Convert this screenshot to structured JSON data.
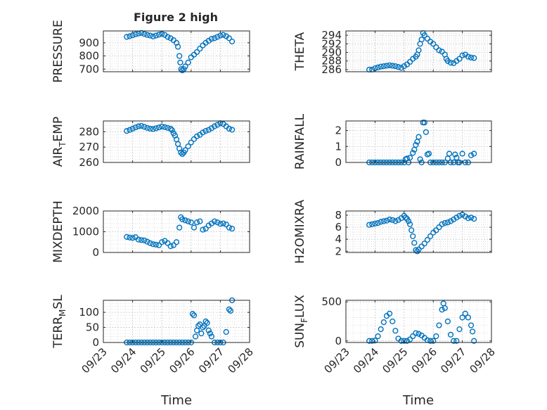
{
  "figure": {
    "title": "Figure 2 high",
    "marker_color": "#0072BD"
  },
  "x_axis": {
    "label": "Time",
    "tick_labels": [
      "09/23",
      "09/24",
      "09/25",
      "09/26",
      "09/27",
      "09/28"
    ],
    "tick_days": [
      0,
      1,
      2,
      3,
      4,
      5
    ],
    "data_start": "09/23",
    "xlim_days": [
      0,
      5
    ]
  },
  "chart_data": [
    {
      "type": "scatter",
      "name": "pressure",
      "ylabel": "PRESSURE",
      "ylim": [
        680,
        990
      ],
      "yticks": [
        700,
        800,
        900
      ],
      "ytick_labels": [
        "700",
        "800",
        "900"
      ],
      "grid": true,
      "title": "Figure 2 high",
      "points": [
        [
          0.8,
          945
        ],
        [
          0.9,
          950
        ],
        [
          1.0,
          957
        ],
        [
          1.1,
          965
        ],
        [
          1.2,
          970
        ],
        [
          1.3,
          975
        ],
        [
          1.4,
          967
        ],
        [
          1.5,
          960
        ],
        [
          1.6,
          955
        ],
        [
          1.7,
          948
        ],
        [
          1.8,
          955
        ],
        [
          1.9,
          962
        ],
        [
          2.0,
          968
        ],
        [
          2.1,
          960
        ],
        [
          2.2,
          945
        ],
        [
          2.3,
          935
        ],
        [
          2.4,
          920
        ],
        [
          2.5,
          900
        ],
        [
          2.55,
          870
        ],
        [
          2.6,
          800
        ],
        [
          2.63,
          750
        ],
        [
          2.66,
          700
        ],
        [
          2.7,
          690
        ],
        [
          2.75,
          700
        ],
        [
          2.8,
          720
        ],
        [
          2.9,
          750
        ],
        [
          3.0,
          790
        ],
        [
          3.1,
          810
        ],
        [
          3.2,
          830
        ],
        [
          3.3,
          855
        ],
        [
          3.4,
          880
        ],
        [
          3.5,
          900
        ],
        [
          3.6,
          915
        ],
        [
          3.7,
          930
        ],
        [
          3.8,
          935
        ],
        [
          3.9,
          945
        ],
        [
          4.0,
          955
        ],
        [
          4.1,
          960
        ],
        [
          4.2,
          950
        ],
        [
          4.3,
          935
        ],
        [
          4.4,
          910
        ]
      ]
    },
    {
      "type": "scatter",
      "name": "theta",
      "ylabel": "THETA",
      "ylim": [
        285.5,
        295
      ],
      "yticks": [
        286,
        288,
        290,
        292,
        294
      ],
      "ytick_labels": [
        "286",
        "288",
        "290",
        "292",
        "294"
      ],
      "grid": true,
      "points": [
        [
          0.8,
          286
        ],
        [
          0.9,
          286
        ],
        [
          1.0,
          286.3
        ],
        [
          1.1,
          286.5
        ],
        [
          1.2,
          286.7
        ],
        [
          1.3,
          286.8
        ],
        [
          1.4,
          286.9
        ],
        [
          1.5,
          287
        ],
        [
          1.6,
          286.9
        ],
        [
          1.7,
          286.8
        ],
        [
          1.8,
          286.6
        ],
        [
          1.9,
          286.4
        ],
        [
          2.0,
          286.8
        ],
        [
          2.1,
          287.2
        ],
        [
          2.2,
          287.8
        ],
        [
          2.3,
          288.5
        ],
        [
          2.4,
          289
        ],
        [
          2.45,
          289.5
        ],
        [
          2.5,
          290.5
        ],
        [
          2.55,
          292
        ],
        [
          2.6,
          293
        ],
        [
          2.65,
          294.5
        ],
        [
          2.7,
          294
        ],
        [
          2.8,
          293.2
        ],
        [
          2.9,
          292.5
        ],
        [
          3.0,
          292
        ],
        [
          3.1,
          291.2
        ],
        [
          3.2,
          290.5
        ],
        [
          3.3,
          290.2
        ],
        [
          3.4,
          289.5
        ],
        [
          3.45,
          288.5
        ],
        [
          3.5,
          288
        ],
        [
          3.6,
          287.6
        ],
        [
          3.7,
          287.5
        ],
        [
          3.8,
          288
        ],
        [
          3.9,
          288.5
        ],
        [
          4.0,
          289.3
        ],
        [
          4.1,
          289.5
        ],
        [
          4.2,
          289
        ],
        [
          4.3,
          288.8
        ],
        [
          4.4,
          288.7
        ]
      ]
    },
    {
      "type": "scatter",
      "name": "air_temp",
      "ylabel": "AIR_TEMP",
      "ylim": [
        260,
        287
      ],
      "yticks": [
        260,
        270,
        280
      ],
      "ytick_labels": [
        "260",
        "270",
        "280"
      ],
      "grid": true,
      "points": [
        [
          0.8,
          280.5
        ],
        [
          0.9,
          281.2
        ],
        [
          1.0,
          282
        ],
        [
          1.1,
          282.8
        ],
        [
          1.2,
          283.5
        ],
        [
          1.3,
          283.8
        ],
        [
          1.4,
          283.2
        ],
        [
          1.5,
          282.5
        ],
        [
          1.6,
          282
        ],
        [
          1.7,
          281.8
        ],
        [
          1.8,
          282.2
        ],
        [
          1.9,
          282.8
        ],
        [
          2.0,
          283.4
        ],
        [
          2.1,
          283
        ],
        [
          2.2,
          282.5
        ],
        [
          2.3,
          282
        ],
        [
          2.35,
          281
        ],
        [
          2.4,
          279
        ],
        [
          2.45,
          277.5
        ],
        [
          2.5,
          275
        ],
        [
          2.55,
          272
        ],
        [
          2.6,
          269
        ],
        [
          2.65,
          266.5
        ],
        [
          2.7,
          265.5
        ],
        [
          2.75,
          266.5
        ],
        [
          2.8,
          268
        ],
        [
          2.9,
          270.5
        ],
        [
          3.0,
          273
        ],
        [
          3.1,
          275.2
        ],
        [
          3.2,
          277
        ],
        [
          3.3,
          278
        ],
        [
          3.4,
          279.5
        ],
        [
          3.5,
          280.5
        ],
        [
          3.6,
          281.2
        ],
        [
          3.7,
          282.3
        ],
        [
          3.8,
          283.5
        ],
        [
          3.9,
          284.5
        ],
        [
          4.0,
          285.5
        ],
        [
          4.1,
          285
        ],
        [
          4.2,
          283.5
        ],
        [
          4.3,
          282
        ],
        [
          4.4,
          281.3
        ]
      ]
    },
    {
      "type": "scatter",
      "name": "rainfall",
      "ylabel": "RAINFALL",
      "ylim": [
        0,
        2.6
      ],
      "yticks": [
        0,
        1,
        2
      ],
      "ytick_labels": [
        "0",
        "1",
        "2"
      ],
      "grid": true,
      "points": [
        [
          0.8,
          0
        ],
        [
          0.9,
          0
        ],
        [
          1.0,
          0
        ],
        [
          1.1,
          0
        ],
        [
          1.2,
          0
        ],
        [
          1.3,
          0
        ],
        [
          1.4,
          0
        ],
        [
          1.5,
          0
        ],
        [
          1.6,
          0
        ],
        [
          1.7,
          0
        ],
        [
          1.8,
          0
        ],
        [
          1.9,
          0
        ],
        [
          2.0,
          0
        ],
        [
          2.05,
          0.2
        ],
        [
          2.1,
          0.25
        ],
        [
          2.15,
          0
        ],
        [
          2.2,
          0.3
        ],
        [
          2.3,
          0.6
        ],
        [
          2.35,
          0.8
        ],
        [
          2.4,
          1.1
        ],
        [
          2.45,
          1.3
        ],
        [
          2.5,
          1.6
        ],
        [
          2.55,
          0.2
        ],
        [
          2.6,
          0
        ],
        [
          2.65,
          2.5
        ],
        [
          2.7,
          2.5
        ],
        [
          2.75,
          1.9
        ],
        [
          2.8,
          0.5
        ],
        [
          2.85,
          0.55
        ],
        [
          2.9,
          0
        ],
        [
          3.0,
          0
        ],
        [
          3.1,
          0
        ],
        [
          3.2,
          0
        ],
        [
          3.3,
          0
        ],
        [
          3.4,
          0
        ],
        [
          3.5,
          0.25
        ],
        [
          3.55,
          0.55
        ],
        [
          3.6,
          0
        ],
        [
          3.7,
          0
        ],
        [
          3.75,
          0.5
        ],
        [
          3.8,
          0.3
        ],
        [
          3.85,
          0
        ],
        [
          3.9,
          0
        ],
        [
          4.0,
          0.55
        ],
        [
          4.1,
          0
        ],
        [
          4.2,
          0
        ],
        [
          4.3,
          0.45
        ],
        [
          4.4,
          0.55
        ]
      ]
    },
    {
      "type": "scatter",
      "name": "mixdepth",
      "ylabel": "MIXDEPTH",
      "ylim": [
        0,
        2000
      ],
      "yticks": [
        0,
        1000,
        2000
      ],
      "ytick_labels": [
        "0",
        "1000",
        "2000"
      ],
      "grid": true,
      "points": [
        [
          0.8,
          750
        ],
        [
          0.9,
          720
        ],
        [
          1.0,
          700
        ],
        [
          1.1,
          740
        ],
        [
          1.2,
          620
        ],
        [
          1.3,
          600
        ],
        [
          1.4,
          580
        ],
        [
          1.5,
          520
        ],
        [
          1.6,
          450
        ],
        [
          1.7,
          400
        ],
        [
          1.8,
          380
        ],
        [
          1.9,
          350
        ],
        [
          2.0,
          500
        ],
        [
          2.1,
          560
        ],
        [
          2.2,
          450
        ],
        [
          2.3,
          300
        ],
        [
          2.4,
          350
        ],
        [
          2.5,
          500
        ],
        [
          2.6,
          1200
        ],
        [
          2.65,
          1700
        ],
        [
          2.7,
          1600
        ],
        [
          2.8,
          1550
        ],
        [
          2.9,
          1500
        ],
        [
          3.0,
          1450
        ],
        [
          3.1,
          1200
        ],
        [
          3.2,
          1450
        ],
        [
          3.3,
          1500
        ],
        [
          3.4,
          1100
        ],
        [
          3.5,
          1150
        ],
        [
          3.6,
          1300
        ],
        [
          3.7,
          1400
        ],
        [
          3.8,
          1500
        ],
        [
          3.9,
          1450
        ],
        [
          4.0,
          1380
        ],
        [
          4.1,
          1400
        ],
        [
          4.2,
          1350
        ],
        [
          4.3,
          1200
        ],
        [
          4.4,
          1150
        ]
      ]
    },
    {
      "type": "scatter",
      "name": "h2omixra",
      "ylabel": "H2OMIXRA",
      "ylim": [
        1.8,
        8.7
      ],
      "yticks": [
        2,
        4,
        6,
        8
      ],
      "ytick_labels": [
        "2",
        "4",
        "6",
        "8"
      ],
      "grid": true,
      "points": [
        [
          0.8,
          6.4
        ],
        [
          0.9,
          6.5
        ],
        [
          1.0,
          6.6
        ],
        [
          1.1,
          6.7
        ],
        [
          1.2,
          6.9
        ],
        [
          1.3,
          7
        ],
        [
          1.4,
          7.1
        ],
        [
          1.5,
          7.3
        ],
        [
          1.6,
          7.2
        ],
        [
          1.7,
          7
        ],
        [
          1.8,
          7.2
        ],
        [
          1.9,
          7.5
        ],
        [
          2.0,
          7.9
        ],
        [
          2.05,
          7.6
        ],
        [
          2.1,
          7.4
        ],
        [
          2.15,
          7
        ],
        [
          2.2,
          6.5
        ],
        [
          2.25,
          5.5
        ],
        [
          2.3,
          4.5
        ],
        [
          2.35,
          3.4
        ],
        [
          2.4,
          2.2
        ],
        [
          2.45,
          2
        ],
        [
          2.5,
          2.3
        ],
        [
          2.6,
          2.8
        ],
        [
          2.7,
          3.3
        ],
        [
          2.8,
          3.9
        ],
        [
          2.9,
          4.5
        ],
        [
          3.0,
          5.1
        ],
        [
          3.1,
          5.5
        ],
        [
          3.2,
          6
        ],
        [
          3.3,
          6.5
        ],
        [
          3.4,
          6.7
        ],
        [
          3.5,
          6.8
        ],
        [
          3.6,
          7
        ],
        [
          3.7,
          7.3
        ],
        [
          3.8,
          7.6
        ],
        [
          3.9,
          7.9
        ],
        [
          4.0,
          8.1
        ],
        [
          4.1,
          7.8
        ],
        [
          4.2,
          7.5
        ],
        [
          4.3,
          7.6
        ],
        [
          4.4,
          7.4
        ]
      ]
    },
    {
      "type": "scatter",
      "name": "terr_msl",
      "ylabel": "TERR_MSL",
      "ylim": [
        0,
        140
      ],
      "yticks": [
        0,
        50,
        100
      ],
      "ytick_labels": [
        "0",
        "50",
        "100"
      ],
      "grid": true,
      "points": [
        [
          0.8,
          0
        ],
        [
          0.9,
          0
        ],
        [
          1.0,
          0
        ],
        [
          1.1,
          0
        ],
        [
          1.2,
          0
        ],
        [
          1.3,
          0
        ],
        [
          1.4,
          0
        ],
        [
          1.5,
          0
        ],
        [
          1.6,
          0
        ],
        [
          1.7,
          0
        ],
        [
          1.8,
          0
        ],
        [
          1.9,
          0
        ],
        [
          2.0,
          0
        ],
        [
          2.1,
          0
        ],
        [
          2.2,
          0
        ],
        [
          2.3,
          0
        ],
        [
          2.4,
          0
        ],
        [
          2.5,
          0
        ],
        [
          2.6,
          0
        ],
        [
          2.7,
          0
        ],
        [
          2.8,
          0
        ],
        [
          2.9,
          0
        ],
        [
          3.0,
          0
        ],
        [
          3.05,
          95
        ],
        [
          3.1,
          90
        ],
        [
          3.15,
          20
        ],
        [
          3.2,
          40
        ],
        [
          3.25,
          55
        ],
        [
          3.3,
          60
        ],
        [
          3.35,
          30
        ],
        [
          3.4,
          50
        ],
        [
          3.45,
          55
        ],
        [
          3.5,
          70
        ],
        [
          3.55,
          65
        ],
        [
          3.6,
          40
        ],
        [
          3.65,
          30
        ],
        [
          3.7,
          20
        ],
        [
          3.8,
          0
        ],
        [
          3.9,
          0
        ],
        [
          4.0,
          0
        ],
        [
          4.1,
          0
        ],
        [
          4.2,
          35
        ],
        [
          4.3,
          110
        ],
        [
          4.35,
          105
        ],
        [
          4.4,
          140
        ]
      ]
    },
    {
      "type": "scatter",
      "name": "sun_flux",
      "ylabel": "SUN_FLUX",
      "ylim": [
        -20,
        520
      ],
      "yticks": [
        0,
        500
      ],
      "ytick_labels": [
        "0",
        "500"
      ],
      "grid": true,
      "points": [
        [
          0.8,
          0
        ],
        [
          0.9,
          0
        ],
        [
          1.0,
          5
        ],
        [
          1.1,
          60
        ],
        [
          1.2,
          150
        ],
        [
          1.3,
          240
        ],
        [
          1.4,
          320
        ],
        [
          1.5,
          350
        ],
        [
          1.6,
          250
        ],
        [
          1.7,
          130
        ],
        [
          1.8,
          30
        ],
        [
          1.9,
          0
        ],
        [
          2.0,
          0
        ],
        [
          2.1,
          0
        ],
        [
          2.2,
          20
        ],
        [
          2.3,
          60
        ],
        [
          2.4,
          100
        ],
        [
          2.5,
          90
        ],
        [
          2.6,
          70
        ],
        [
          2.7,
          40
        ],
        [
          2.8,
          10
        ],
        [
          2.9,
          0
        ],
        [
          3.0,
          0
        ],
        [
          3.1,
          60
        ],
        [
          3.2,
          200
        ],
        [
          3.3,
          400
        ],
        [
          3.35,
          480
        ],
        [
          3.4,
          420
        ],
        [
          3.5,
          250
        ],
        [
          3.6,
          80
        ],
        [
          3.7,
          0
        ],
        [
          3.8,
          0
        ],
        [
          3.9,
          150
        ],
        [
          4.0,
          300
        ],
        [
          4.1,
          350
        ],
        [
          4.2,
          300
        ],
        [
          4.3,
          200
        ],
        [
          4.35,
          120
        ],
        [
          4.4,
          0
        ]
      ]
    }
  ]
}
